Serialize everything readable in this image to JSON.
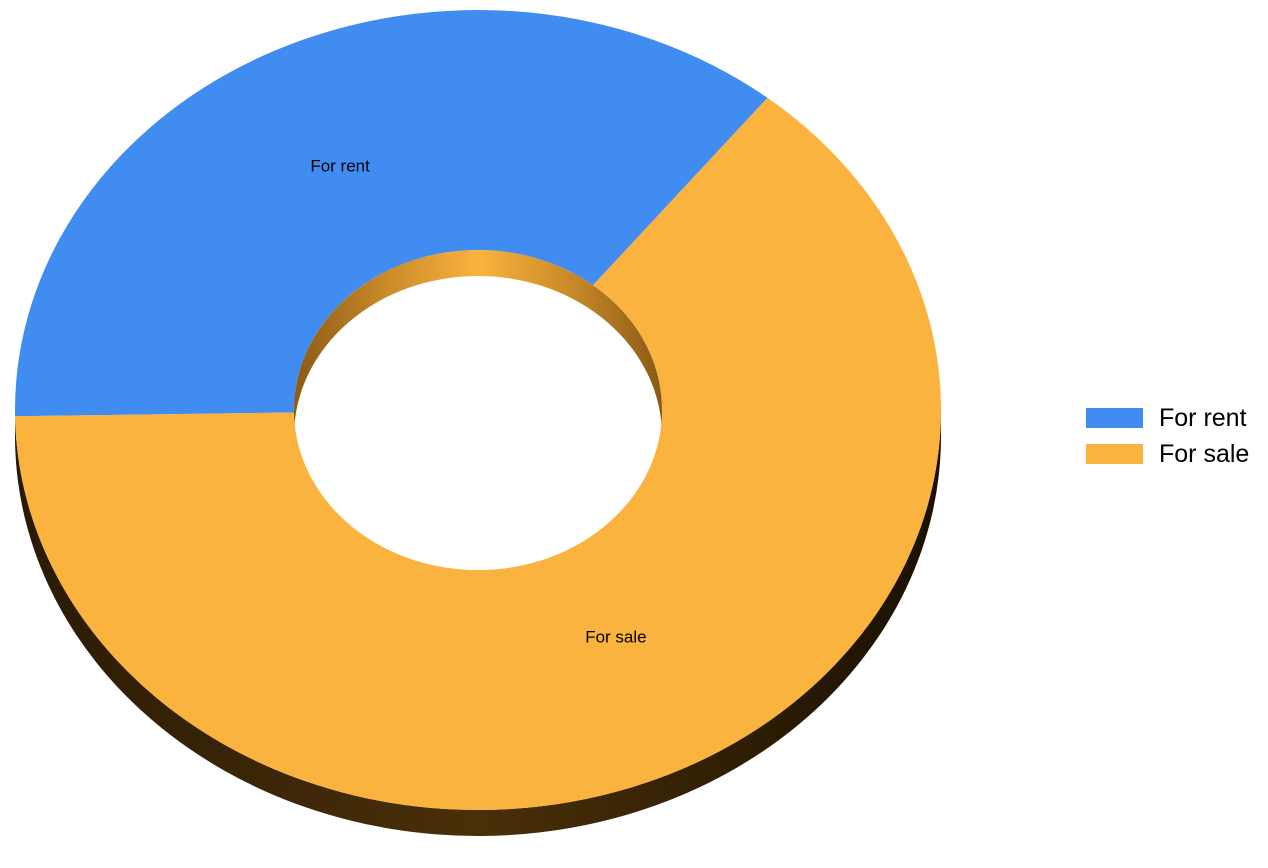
{
  "chart_data": {
    "type": "pie",
    "variant": "3d-donut",
    "categories": [
      "For rent",
      "For sale"
    ],
    "values": [
      36,
      64
    ],
    "colors": [
      "#418cf0",
      "#fab33e"
    ],
    "legend_placement": "right",
    "title": ""
  },
  "legend": {
    "items": [
      {
        "label": "For rent",
        "color": "#418cf0"
      },
      {
        "label": "For sale",
        "color": "#fab33e"
      }
    ]
  }
}
